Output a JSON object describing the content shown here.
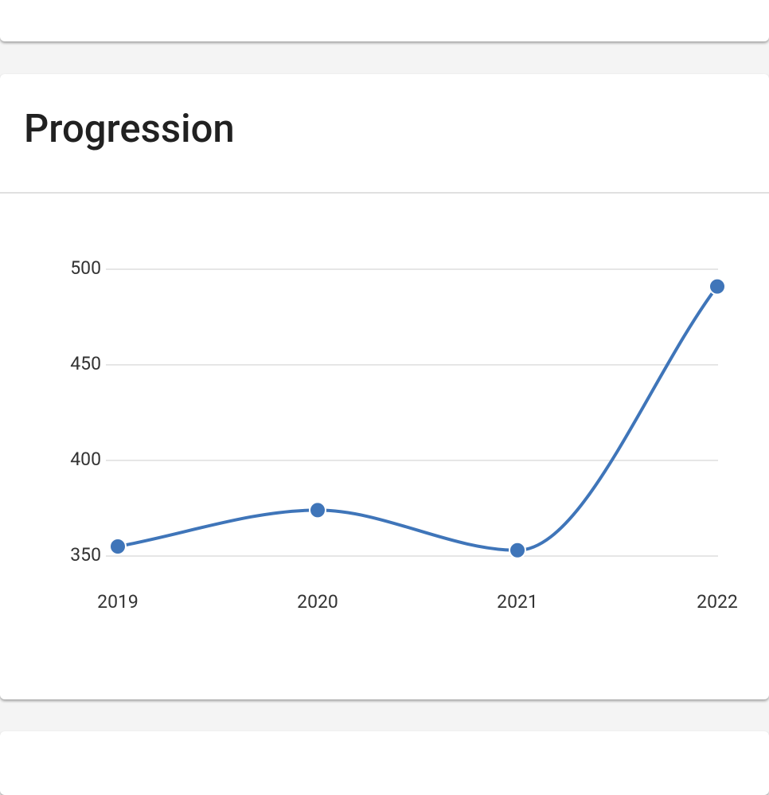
{
  "chart_data": {
    "type": "line",
    "title": "Progression",
    "categories": [
      "2019",
      "2020",
      "2021",
      "2022"
    ],
    "values": [
      355,
      374,
      353,
      491
    ],
    "color": "#3f75b9",
    "ylim": [
      350,
      500
    ],
    "yticks": [
      350,
      400,
      450,
      500
    ],
    "grid": true
  }
}
